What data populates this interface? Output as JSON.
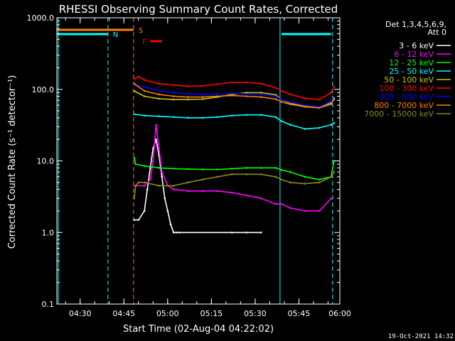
{
  "colors": {
    "background": "#000000",
    "foreground": "#ffffff",
    "marker_line": "#00ffff",
    "s_flag": "#ff8000",
    "f_flag": "#ff0000"
  },
  "chart_data": {
    "type": "line",
    "title": "RHESSI Observing Summary Count Rates, Corrected",
    "xlabel": "Start Time (02-Aug-04 04:22:02)",
    "ylabel": "Corrected Count Rate (s⁻¹ detector⁻¹)",
    "ylog": true,
    "ylim": [
      0.1,
      1000
    ],
    "xlim_minutes": [
      0,
      97
    ],
    "x_tick_labels": [
      "04:30",
      "04:45",
      "05:00",
      "05:15",
      "05:30",
      "05:45",
      "06:00"
    ],
    "x_tick_minutes": [
      7.97,
      22.97,
      37.97,
      52.97,
      67.97,
      82.97,
      97.97
    ],
    "y_tick_labels": [
      "0.1",
      "1.0",
      "10.0",
      "100.0",
      "1000.0"
    ],
    "y_tick_values": [
      0.1,
      1,
      10,
      100,
      1000
    ],
    "legend_header": [
      "Det 1,3,4,5,6,9,",
      "Att 0"
    ],
    "legend_placement": "right",
    "flags": [
      {
        "label": "N",
        "color": "#00ffff",
        "segments": [
          [
            0,
            17.5
          ],
          [
            77,
            94
          ]
        ]
      },
      {
        "label": "S",
        "color": "#ff8000",
        "segments": [
          [
            0,
            26.3
          ]
        ]
      },
      {
        "label": "F",
        "color": "#ff0000",
        "segments": [
          [
            32,
            36
          ]
        ]
      }
    ],
    "markers": [
      {
        "minute": 0.5,
        "style": "solid"
      },
      {
        "minute": 17.5,
        "style": "dashed"
      },
      {
        "minute": 76.5,
        "style": "solid"
      },
      {
        "minute": 94.5,
        "style": "dashed"
      }
    ],
    "attenuator_marker": {
      "minute": 26.3,
      "style": "dashed",
      "color": "#ff8000"
    },
    "series": [
      {
        "name": "3 - 6 keV",
        "color": "#ffffff",
        "x": [
          26.5,
          28,
          30,
          31,
          32,
          33,
          34,
          35,
          36,
          37,
          38,
          39,
          40,
          41,
          42,
          60,
          65,
          70
        ],
        "y": [
          1.5,
          1.5,
          2,
          4,
          8,
          15,
          20,
          12,
          6,
          3,
          2,
          1.3,
          1,
          1,
          1,
          1,
          1,
          1
        ]
      },
      {
        "name": "6 - 12 keV",
        "color": "#ff00ff",
        "x": [
          26.5,
          30,
          32,
          33,
          34,
          35,
          36,
          38,
          40,
          45,
          50,
          55,
          60,
          65,
          70,
          75,
          77,
          80,
          85,
          90,
          94
        ],
        "y": [
          4.5,
          4.5,
          5.5,
          10,
          32,
          15,
          7,
          4.5,
          4,
          3.8,
          3.8,
          3.8,
          3.6,
          3.3,
          3,
          2.5,
          2.5,
          2.2,
          2,
          2,
          3
        ]
      },
      {
        "name": "12 - 25 keV",
        "color": "#00ff00",
        "x": [
          26.5,
          27,
          30,
          35,
          40,
          45,
          50,
          55,
          60,
          65,
          70,
          75,
          77,
          80,
          85,
          90,
          94,
          95
        ],
        "y": [
          11,
          9,
          8.5,
          8,
          7.8,
          7.7,
          7.6,
          7.6,
          7.8,
          8,
          8,
          8,
          7.5,
          7,
          6,
          5.5,
          6,
          10
        ]
      },
      {
        "name": "25 - 50 keV",
        "color": "#00ffff",
        "x": [
          26.5,
          30,
          35,
          40,
          45,
          50,
          55,
          60,
          65,
          70,
          75,
          77,
          80,
          85,
          90,
          94,
          95
        ],
        "y": [
          45,
          43,
          42,
          41,
          40,
          40,
          41,
          43,
          44,
          44,
          41,
          36,
          32,
          28,
          29,
          32,
          34
        ]
      },
      {
        "name": "50 - 100 keV",
        "color": "#c8c800",
        "x": [
          26.5,
          30,
          35,
          40,
          45,
          50,
          55,
          60,
          65,
          70,
          75,
          77,
          80,
          85,
          90,
          94,
          95
        ],
        "y": [
          95,
          80,
          74,
          72,
          72,
          73,
          78,
          85,
          90,
          90,
          84,
          72,
          64,
          58,
          57,
          65,
          72
        ]
      },
      {
        "name": "100 - 300 keV",
        "color": "#ff0000",
        "x": [
          26.5,
          28,
          30,
          35,
          40,
          45,
          50,
          55,
          60,
          65,
          70,
          75,
          77,
          80,
          85,
          90,
          94,
          95
        ],
        "y": [
          140,
          150,
          135,
          120,
          115,
          110,
          112,
          118,
          125,
          125,
          120,
          105,
          95,
          85,
          75,
          72,
          90,
          110
        ]
      },
      {
        "name": "300 - 800 keV",
        "color": "#0000ff",
        "x": [
          26.5,
          30,
          35,
          40,
          45,
          50,
          55,
          60,
          65,
          70,
          75,
          77,
          80,
          85,
          90,
          94,
          95
        ],
        "y": [
          115,
          108,
          96,
          90,
          86,
          85,
          86,
          88,
          86,
          84,
          80,
          72,
          66,
          60,
          57,
          68,
          78
        ]
      },
      {
        "name": "800 - 7000 keV",
        "color": "#ff8000",
        "x": [
          26.5,
          30,
          35,
          40,
          45,
          50,
          55,
          60,
          65,
          70,
          75,
          77,
          80,
          85,
          90,
          94,
          95
        ],
        "y": [
          120,
          95,
          85,
          80,
          78,
          78,
          80,
          82,
          80,
          78,
          73,
          67,
          62,
          57,
          55,
          62,
          75
        ]
      },
      {
        "name": "7000 - 15000 keV",
        "color": "#8c8c14",
        "x": [
          26.5,
          27,
          28,
          30,
          35,
          40,
          45,
          50,
          55,
          60,
          65,
          70,
          75,
          77,
          80,
          85,
          90,
          94,
          95
        ],
        "y": [
          3,
          4.5,
          5,
          5,
          4.5,
          4.5,
          5,
          5.5,
          6,
          6.5,
          6.5,
          6.5,
          6,
          5.5,
          5,
          4.8,
          5,
          6,
          7
        ]
      }
    ]
  },
  "footer": {
    "timestamp": "19-Oct-2021 14:32"
  }
}
